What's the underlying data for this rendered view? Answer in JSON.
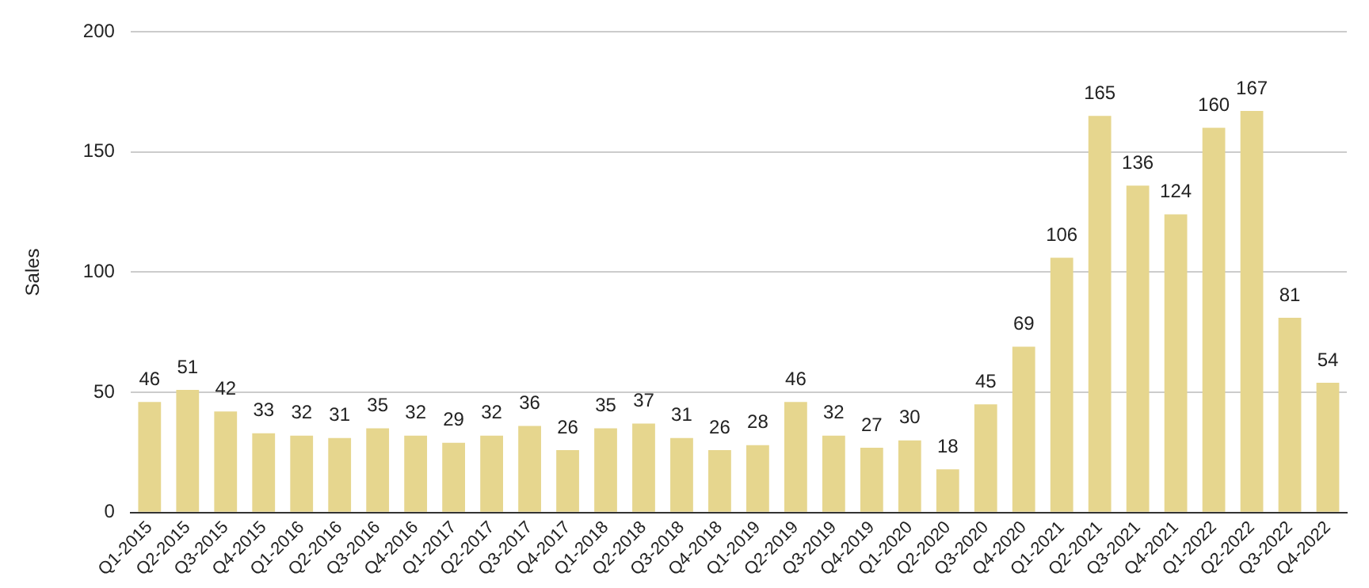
{
  "chart_data": {
    "type": "bar",
    "ylabel": "Sales",
    "categories": [
      "Q1-2015",
      "Q2-2015",
      "Q3-2015",
      "Q4-2015",
      "Q1-2016",
      "Q2-2016",
      "Q3-2016",
      "Q4-2016",
      "Q1-2017",
      "Q2-2017",
      "Q3-2017",
      "Q4-2017",
      "Q1-2018",
      "Q2-2018",
      "Q3-2018",
      "Q4-2018",
      "Q1-2019",
      "Q2-2019",
      "Q3-2019",
      "Q4-2019",
      "Q1-2020",
      "Q2-2020",
      "Q3-2020",
      "Q4-2020",
      "Q1-2021",
      "Q2-2021",
      "Q3-2021",
      "Q4-2021",
      "Q1-2022",
      "Q2-2022",
      "Q3-2022",
      "Q4-2022"
    ],
    "values": [
      46,
      51,
      42,
      33,
      32,
      31,
      35,
      32,
      29,
      32,
      36,
      26,
      35,
      37,
      31,
      26,
      28,
      46,
      32,
      27,
      30,
      18,
      45,
      69,
      106,
      165,
      136,
      124,
      160,
      167,
      81,
      54
    ],
    "color": "#e6d68e",
    "ylim": [
      0,
      200
    ],
    "yticks": [
      0,
      50,
      100,
      150,
      200
    ],
    "grid": "y",
    "data_labels": true
  }
}
